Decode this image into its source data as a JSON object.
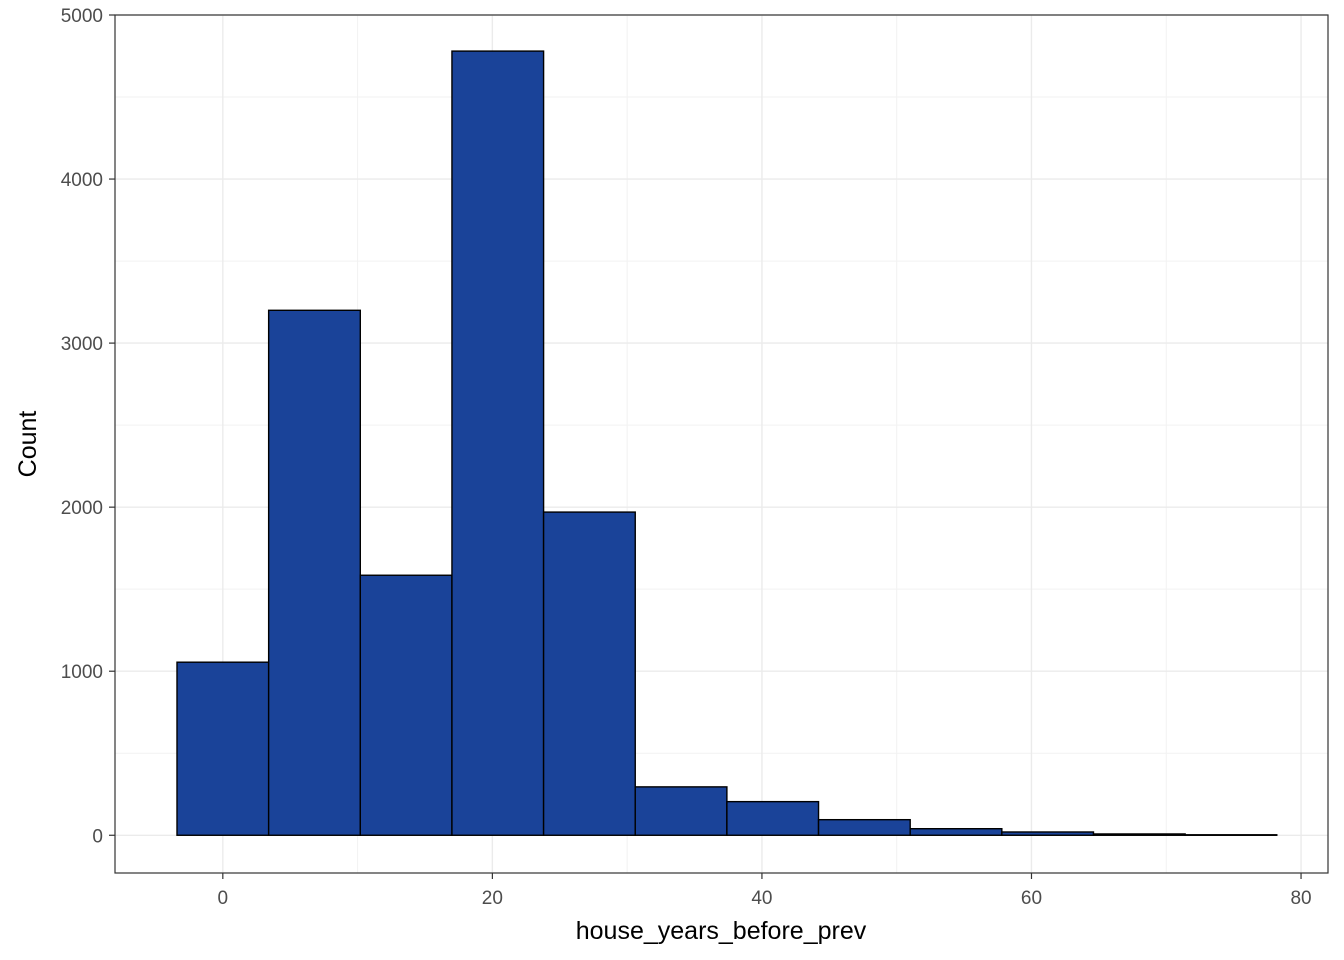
{
  "chart_data": {
    "type": "histogram",
    "title": "",
    "xlabel": "house_years_before_prev",
    "ylabel": "Count",
    "xlim": [
      -8,
      82
    ],
    "ylim": [
      -230,
      5000
    ],
    "x_ticks": [
      0,
      20,
      40,
      60,
      80
    ],
    "y_ticks": [
      0,
      1000,
      2000,
      3000,
      4000,
      5000
    ],
    "grid": true,
    "legend": "none",
    "bins": [
      {
        "x0": -3.4,
        "x1": 3.4,
        "count": 1055
      },
      {
        "x0": 3.4,
        "x1": 10.2,
        "count": 3200
      },
      {
        "x0": 10.2,
        "x1": 17.0,
        "count": 1585
      },
      {
        "x0": 17.0,
        "x1": 23.8,
        "count": 4780
      },
      {
        "x0": 23.8,
        "x1": 30.6,
        "count": 1970
      },
      {
        "x0": 30.6,
        "x1": 37.4,
        "count": 295
      },
      {
        "x0": 37.4,
        "x1": 44.2,
        "count": 205
      },
      {
        "x0": 44.2,
        "x1": 51.0,
        "count": 95
      },
      {
        "x0": 51.0,
        "x1": 57.8,
        "count": 40
      },
      {
        "x0": 57.8,
        "x1": 64.6,
        "count": 20
      },
      {
        "x0": 64.6,
        "x1": 71.4,
        "count": 8
      },
      {
        "x0": 71.4,
        "x1": 78.2,
        "count": 3
      }
    ],
    "colors": {
      "bar_fill": "#1A4399",
      "bar_stroke": "#000000",
      "grid_major": "#EBEBEB",
      "grid_minor": "#F2F2F2",
      "panel_border": "#333333",
      "tick_text": "#4D4D4D",
      "axis_title": "#000000"
    }
  }
}
